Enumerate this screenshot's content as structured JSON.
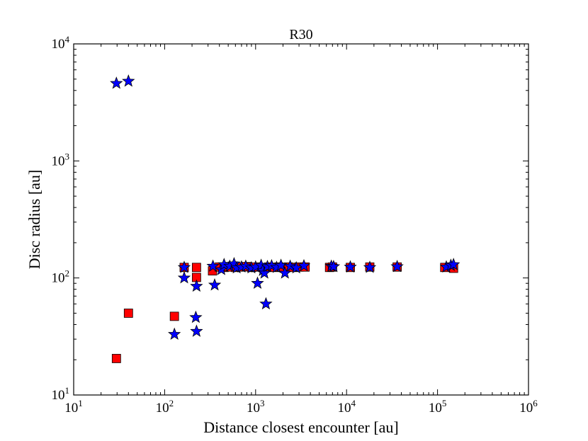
{
  "chart_data": {
    "type": "scatter",
    "title": "R30",
    "xlabel": "Distance closest encounter [au]",
    "ylabel": "Disc radius [au]",
    "xscale": "log",
    "yscale": "log",
    "xlim": [
      10,
      1000000
    ],
    "ylim": [
      10,
      10000
    ],
    "xticks": [
      {
        "base": "10",
        "exp": "1",
        "v": 10
      },
      {
        "base": "10",
        "exp": "2",
        "v": 100
      },
      {
        "base": "10",
        "exp": "3",
        "v": 1000
      },
      {
        "base": "10",
        "exp": "4",
        "v": 10000
      },
      {
        "base": "10",
        "exp": "5",
        "v": 100000
      },
      {
        "base": "10",
        "exp": "6",
        "v": 1000000
      }
    ],
    "yticks": [
      {
        "base": "10",
        "exp": "1",
        "v": 10
      },
      {
        "base": "10",
        "exp": "2",
        "v": 100
      },
      {
        "base": "10",
        "exp": "3",
        "v": 1000
      },
      {
        "base": "10",
        "exp": "4",
        "v": 10000
      }
    ],
    "series": [
      {
        "name": "squares",
        "marker": "square",
        "color": "#ff0000",
        "points": [
          [
            29.5,
            20.5
          ],
          [
            40,
            50
          ],
          [
            128,
            47
          ],
          [
            164,
            123
          ],
          [
            224,
            123
          ],
          [
            224,
            101
          ],
          [
            336,
            115
          ],
          [
            400,
            124
          ],
          [
            450,
            123
          ],
          [
            500,
            125
          ],
          [
            550,
            124
          ],
          [
            600,
            123
          ],
          [
            700,
            124
          ],
          [
            800,
            125
          ],
          [
            900,
            123
          ],
          [
            1000,
            124
          ],
          [
            1200,
            123
          ],
          [
            1400,
            124
          ],
          [
            1600,
            123
          ],
          [
            1800,
            124
          ],
          [
            2000,
            123
          ],
          [
            2300,
            124
          ],
          [
            2600,
            123
          ],
          [
            3000,
            124
          ],
          [
            3500,
            124
          ],
          [
            6500,
            123
          ],
          [
            7000,
            124
          ],
          [
            11000,
            123
          ],
          [
            18000,
            124
          ],
          [
            36000,
            124
          ],
          [
            120000,
            123
          ],
          [
            150000,
            121
          ]
        ]
      },
      {
        "name": "stars",
        "marker": "star",
        "color": "#0000ff",
        "points": [
          [
            29.5,
            4600
          ],
          [
            40,
            4800
          ],
          [
            164,
            123
          ],
          [
            164,
            100
          ],
          [
            224,
            85
          ],
          [
            220,
            46
          ],
          [
            224,
            35
          ],
          [
            128,
            33
          ],
          [
            355,
            87
          ],
          [
            340,
            126
          ],
          [
            420,
            118
          ],
          [
            450,
            130
          ],
          [
            520,
            126
          ],
          [
            580,
            132
          ],
          [
            620,
            122
          ],
          [
            700,
            124
          ],
          [
            780,
            126
          ],
          [
            900,
            122
          ],
          [
            1000,
            124
          ],
          [
            1050,
            90
          ],
          [
            1150,
            128
          ],
          [
            1200,
            116
          ],
          [
            1250,
            110
          ],
          [
            1300,
            60
          ],
          [
            1350,
            125
          ],
          [
            1500,
            127
          ],
          [
            1700,
            123
          ],
          [
            1900,
            128
          ],
          [
            2100,
            110
          ],
          [
            2400,
            126
          ],
          [
            2800,
            122
          ],
          [
            3400,
            127
          ],
          [
            6800,
            126
          ],
          [
            7200,
            125
          ],
          [
            11000,
            124
          ],
          [
            18000,
            123
          ],
          [
            36000,
            125
          ],
          [
            125000,
            124
          ],
          [
            140000,
            128
          ],
          [
            150000,
            130
          ]
        ]
      }
    ]
  }
}
